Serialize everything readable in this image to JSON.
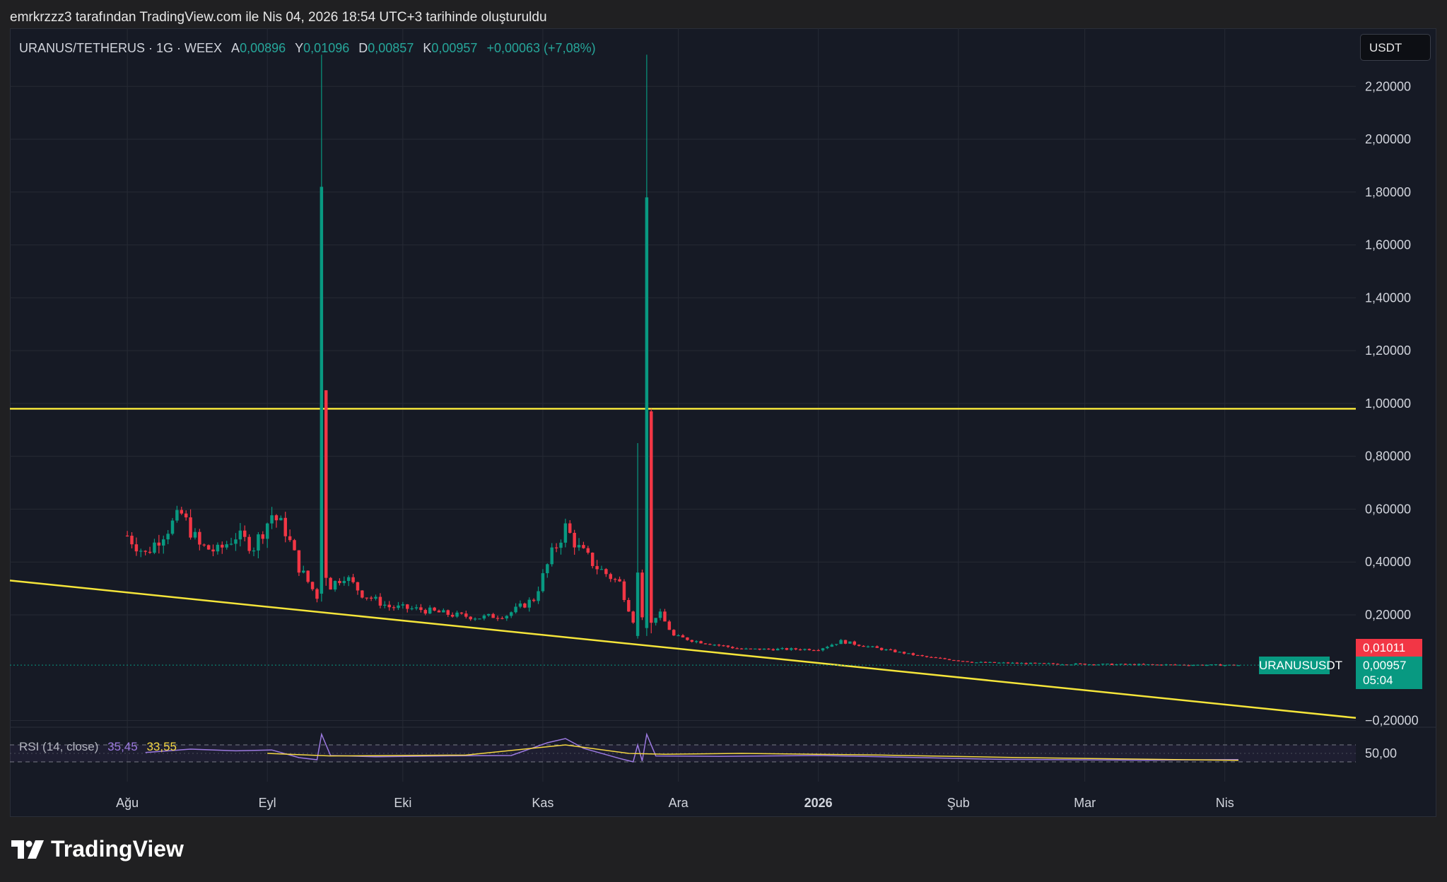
{
  "caption": "emrkrzzz3 tarafından TradingView.com ile Nis 04, 2026 18:54 UTC+3 tarihinde oluşturuldu",
  "legend": {
    "symbol": "URANUS/TETHERUS · 1G · WEEX",
    "open_label": "A",
    "open": "0,00896",
    "high_label": "Y",
    "high": "0,01096",
    "low_label": "D",
    "low": "0,00857",
    "close_label": "K",
    "close": "0,00957",
    "change": "+0,00063 (+7,08%)"
  },
  "rsi_legend": {
    "label": "RSI (14, close)",
    "rsi": "35,45",
    "ma": "33,55"
  },
  "currency_button": "USDT",
  "badges": {
    "symbol": "URANUSUSDT",
    "last_price": "0,01011",
    "close": "0,00957",
    "countdown": "05:04"
  },
  "brand": "TradingView",
  "colors": {
    "up": "#089981",
    "down": "#f23645",
    "trendline": "#f5e53a",
    "rsi": "#9c7ae0",
    "rsi_ma": "#f5d742",
    "background": "#161a25"
  },
  "chart_data": {
    "type": "candlestick",
    "timeframe": "1G",
    "y_ticks": [
      "2,20000",
      "2,00000",
      "1,80000",
      "1,60000",
      "1,40000",
      "1,20000",
      "1,00000",
      "0,80000",
      "0,60000",
      "0,40000",
      "0,20000",
      "−0,20000"
    ],
    "y_tick_values": [
      2.2,
      2.0,
      1.8,
      1.6,
      1.4,
      1.2,
      1.0,
      0.8,
      0.6,
      0.4,
      0.2,
      -0.2
    ],
    "ylim": [
      -0.22,
      2.42
    ],
    "x_ticks": [
      "Ağu",
      "Eyl",
      "Eki",
      "Kas",
      "Ara",
      "2026",
      "Şub",
      "Mar",
      "Nis"
    ],
    "x_tick_dates": [
      "2025-08-01",
      "2025-09-01",
      "2025-10-01",
      "2025-11-01",
      "2025-12-01",
      "2026-01-01",
      "2026-02-01",
      "2026-03-01",
      "2026-04-01"
    ],
    "bold_ticks": [
      "2026"
    ],
    "horizontal_line": {
      "value": 0.98
    },
    "trendline": {
      "from": [
        "2025-07-06",
        0.33
      ],
      "to": [
        "2026-04-30",
        -0.19
      ]
    },
    "price_line": 0.00957,
    "key_candles": [
      {
        "date": "2025-09-13",
        "open": 0.28,
        "high": 2.32,
        "low": 0.25,
        "close": 1.82
      },
      {
        "date": "2025-09-14",
        "open": 1.05,
        "high": 1.05,
        "low": 0.31,
        "close": 0.34
      },
      {
        "date": "2025-11-22",
        "open": 0.12,
        "high": 0.85,
        "low": 0.11,
        "close": 0.36
      },
      {
        "date": "2025-11-24",
        "open": 0.15,
        "high": 2.32,
        "low": 0.12,
        "close": 1.78
      },
      {
        "date": "2025-11-25",
        "open": 0.97,
        "high": 0.98,
        "low": 0.13,
        "close": 0.17
      }
    ],
    "trend_closes": [
      [
        "2025-08-01",
        0.5
      ],
      [
        "2025-08-05",
        0.43
      ],
      [
        "2025-08-09",
        0.51
      ],
      [
        "2025-08-13",
        0.58
      ],
      [
        "2025-08-17",
        0.46
      ],
      [
        "2025-08-21",
        0.44
      ],
      [
        "2025-08-25",
        0.5
      ],
      [
        "2025-08-29",
        0.46
      ],
      [
        "2025-09-02",
        0.58
      ],
      [
        "2025-09-05",
        0.52
      ],
      [
        "2025-09-08",
        0.38
      ],
      [
        "2025-09-12",
        0.27
      ],
      [
        "2025-09-18",
        0.35
      ],
      [
        "2025-09-22",
        0.28
      ],
      [
        "2025-09-28",
        0.23
      ],
      [
        "2025-10-05",
        0.22
      ],
      [
        "2025-10-12",
        0.2
      ],
      [
        "2025-10-18",
        0.19
      ],
      [
        "2025-10-24",
        0.2
      ],
      [
        "2025-10-30",
        0.26
      ],
      [
        "2025-11-03",
        0.43
      ],
      [
        "2025-11-06",
        0.53
      ],
      [
        "2025-11-09",
        0.45
      ],
      [
        "2025-11-13",
        0.38
      ],
      [
        "2025-11-18",
        0.32
      ],
      [
        "2025-11-21",
        0.18
      ],
      [
        "2025-11-27",
        0.2
      ],
      [
        "2025-11-30",
        0.12
      ],
      [
        "2025-12-05",
        0.1
      ],
      [
        "2025-12-15",
        0.07
      ],
      [
        "2025-12-25",
        0.07
      ],
      [
        "2026-01-01",
        0.07
      ],
      [
        "2026-01-06",
        0.1
      ],
      [
        "2026-01-15",
        0.07
      ],
      [
        "2026-01-25",
        0.04
      ],
      [
        "2026-02-05",
        0.02
      ],
      [
        "2026-02-20",
        0.015
      ],
      [
        "2026-03-10",
        0.012
      ],
      [
        "2026-04-04",
        0.00957
      ]
    ],
    "rsi": {
      "ticks": [
        "50,00"
      ],
      "bands": [
        70,
        30
      ],
      "current": 35.45,
      "ma_current": 33.55,
      "values": [
        [
          "2025-08-05",
          52
        ],
        [
          "2025-08-15",
          60
        ],
        [
          "2025-08-25",
          56
        ],
        [
          "2025-09-02",
          58
        ],
        [
          "2025-09-08",
          40
        ],
        [
          "2025-09-12",
          35
        ],
        [
          "2025-09-13",
          95
        ],
        [
          "2025-09-15",
          45
        ],
        [
          "2025-09-25",
          42
        ],
        [
          "2025-10-10",
          44
        ],
        [
          "2025-10-25",
          45
        ],
        [
          "2025-11-02",
          75
        ],
        [
          "2025-11-06",
          85
        ],
        [
          "2025-11-10",
          62
        ],
        [
          "2025-11-18",
          38
        ],
        [
          "2025-11-21",
          30
        ],
        [
          "2025-11-22",
          70
        ],
        [
          "2025-11-23",
          32
        ],
        [
          "2025-11-24",
          95
        ],
        [
          "2025-11-26",
          44
        ],
        [
          "2025-12-10",
          43
        ],
        [
          "2026-01-01",
          45
        ],
        [
          "2026-01-15",
          42
        ],
        [
          "2026-02-10",
          36
        ],
        [
          "2026-03-15",
          34
        ],
        [
          "2026-04-04",
          35.45
        ]
      ],
      "ma_values": [
        [
          "2025-09-01",
          50
        ],
        [
          "2025-09-15",
          44
        ],
        [
          "2025-10-15",
          46
        ],
        [
          "2025-11-06",
          70
        ],
        [
          "2025-11-20",
          50
        ],
        [
          "2025-11-28",
          48
        ],
        [
          "2025-12-15",
          50
        ],
        [
          "2026-01-15",
          46
        ],
        [
          "2026-02-15",
          40
        ],
        [
          "2026-04-04",
          33.55
        ]
      ]
    }
  }
}
